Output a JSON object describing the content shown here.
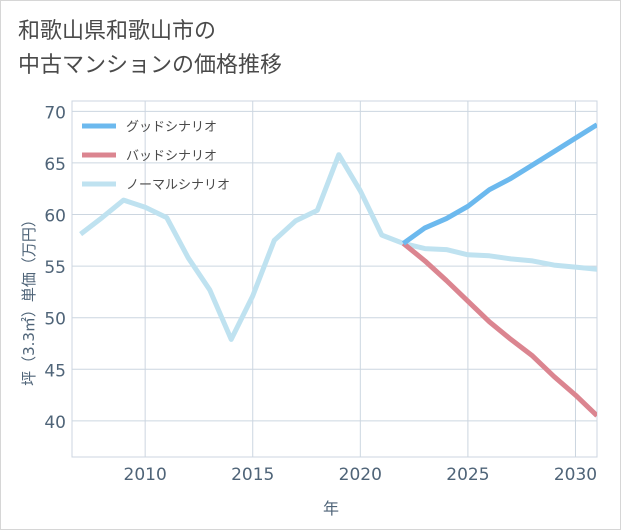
{
  "title": {
    "line1": "和歌山県和歌山市の",
    "line2": "中古マンションの価格推移"
  },
  "colors": {
    "good": "#6cb9ee",
    "bad": "#db8590",
    "normal": "#bfe2f0",
    "grid": "#ccd6e0",
    "axis_text": "#4f6478"
  },
  "chart_data": {
    "type": "line",
    "title": "和歌山県和歌山市の中古マンションの価格推移",
    "xlabel": "年",
    "ylabel": "坪（3.3㎡）単価（万円）",
    "xlim": [
      2006.6,
      2031
    ],
    "ylim": [
      36.5,
      71
    ],
    "x_ticks": [
      2010,
      2015,
      2020,
      2025,
      2030
    ],
    "y_ticks": [
      40,
      45,
      50,
      55,
      60,
      65,
      70
    ],
    "grid": true,
    "legend_position": "top-left",
    "series": [
      {
        "key": "good",
        "name": "グッドシナリオ",
        "x": [
          2022,
          2023,
          2024,
          2025,
          2026,
          2027,
          2028,
          2029,
          2030,
          2031
        ],
        "y": [
          57.2,
          58.7,
          59.6,
          60.8,
          62.4,
          63.5,
          64.8,
          66.1,
          67.4,
          68.7
        ]
      },
      {
        "key": "bad",
        "name": "バッドシナリオ",
        "x": [
          2022,
          2023,
          2024,
          2025,
          2026,
          2027,
          2028,
          2029,
          2030,
          2031
        ],
        "y": [
          57.2,
          55.5,
          53.6,
          51.6,
          49.6,
          47.9,
          46.3,
          44.3,
          42.5,
          40.5
        ]
      },
      {
        "key": "normal",
        "name": "ノーマルシナリオ",
        "x": [
          2007,
          2008,
          2009,
          2010,
          2011,
          2012,
          2013,
          2014,
          2015,
          2016,
          2017,
          2018,
          2019,
          2020,
          2021,
          2022,
          2023,
          2024,
          2025,
          2026,
          2027,
          2028,
          2029,
          2030,
          2031
        ],
        "y": [
          58.1,
          59.7,
          61.4,
          60.7,
          59.7,
          55.8,
          52.7,
          47.9,
          52.1,
          57.5,
          59.4,
          60.4,
          65.8,
          62.3,
          58.0,
          57.2,
          56.7,
          56.6,
          56.1,
          56.0,
          55.7,
          55.5,
          55.1,
          54.9,
          54.7
        ]
      }
    ]
  }
}
